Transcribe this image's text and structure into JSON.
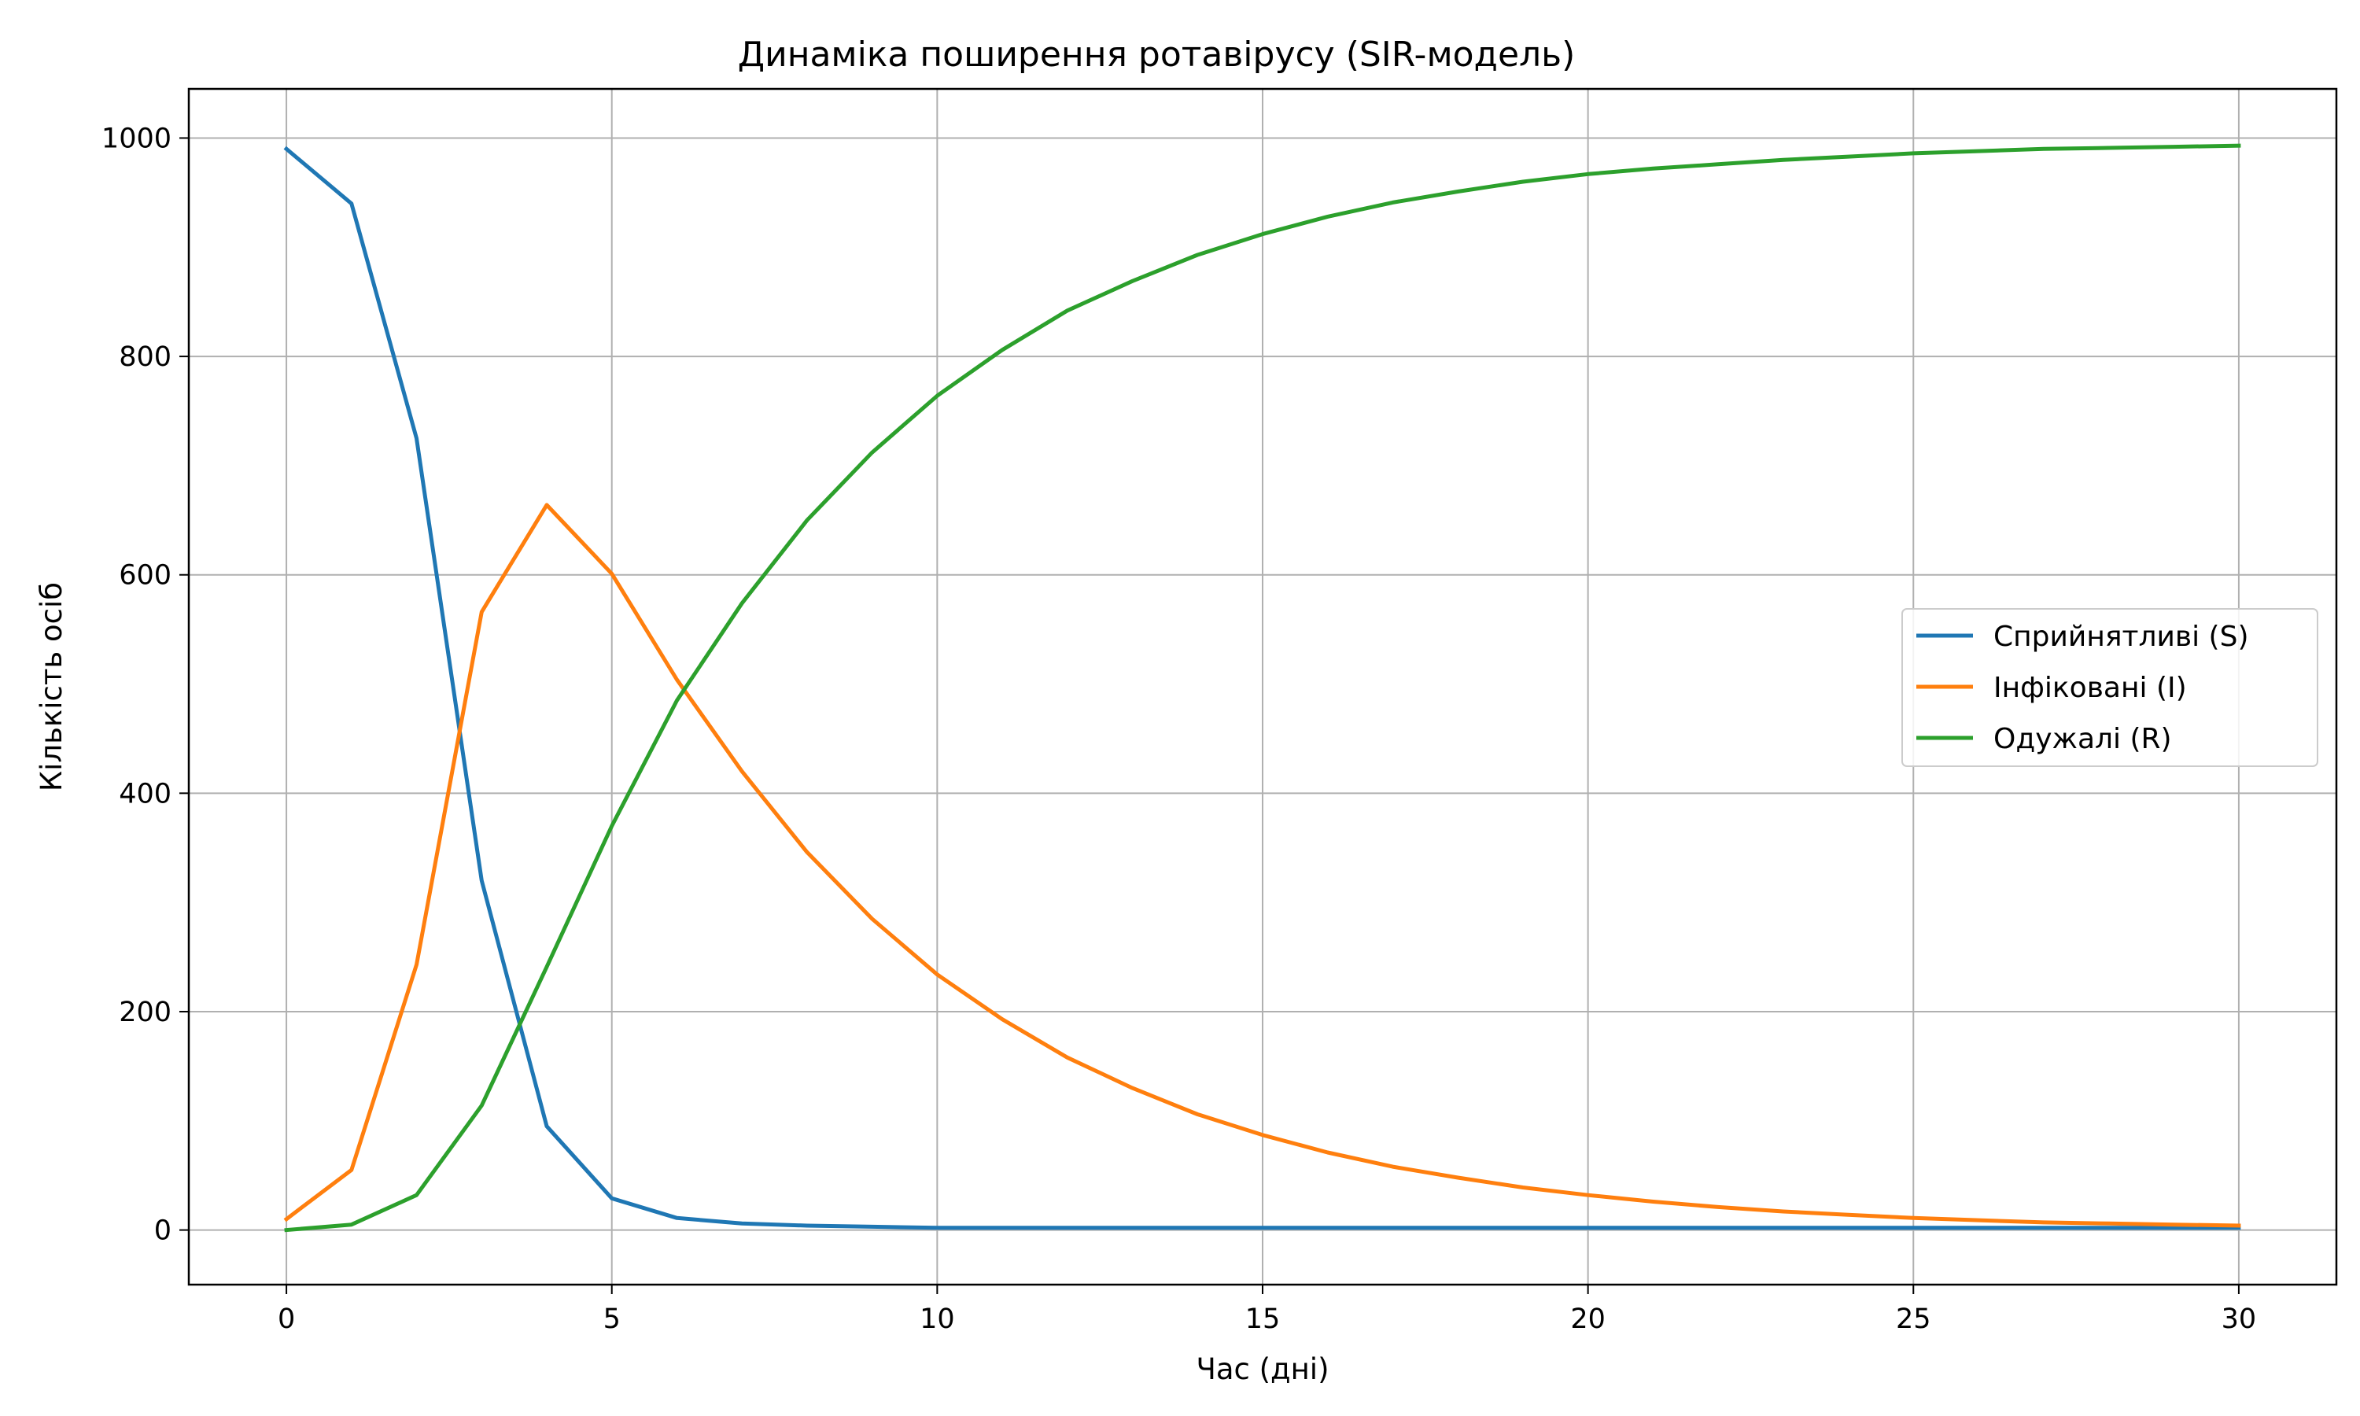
{
  "chart_data": {
    "type": "line",
    "title": "Динаміка поширення ротавірусу (SIR-модель)",
    "xlabel": "Час (дні)",
    "ylabel": "Кількість осіб",
    "xlim": [
      -1.5,
      31.5
    ],
    "ylim": [
      -50,
      1045
    ],
    "xticks": [
      0,
      5,
      10,
      15,
      20,
      25,
      30
    ],
    "yticks": [
      0,
      200,
      400,
      600,
      800,
      1000
    ],
    "grid": true,
    "legend_position": "center-right",
    "x": [
      0,
      1,
      2,
      3,
      4,
      5,
      6,
      7,
      8,
      9,
      10,
      11,
      12,
      13,
      14,
      15,
      16,
      17,
      18,
      19,
      20,
      21,
      22,
      23,
      24,
      25,
      26,
      27,
      28,
      29,
      30
    ],
    "series": [
      {
        "name": "Сприйнятливі (S)",
        "color": "#1f77b4",
        "values": [
          990,
          940,
          725,
          320,
          95,
          29,
          11,
          6,
          4,
          3,
          2,
          2,
          2,
          2,
          2,
          2,
          2,
          2,
          2,
          2,
          2,
          2,
          2,
          2,
          2,
          2,
          2,
          2,
          2,
          2,
          2
        ]
      },
      {
        "name": "Інфіковані (I)",
        "color": "#ff7f0e",
        "values": [
          10,
          55,
          243,
          566,
          664,
          601,
          504,
          420,
          346,
          285,
          234,
          193,
          158,
          130,
          106,
          87,
          71,
          58,
          48,
          39,
          32,
          26,
          21,
          17,
          14,
          11,
          9,
          7,
          6,
          5,
          4
        ]
      },
      {
        "name": "Одужалі (R)",
        "color": "#2ca02c",
        "values": [
          0,
          5,
          32,
          114,
          241,
          370,
          485,
          574,
          650,
          712,
          764,
          806,
          842,
          869,
          893,
          912,
          928,
          941,
          951,
          960,
          967,
          972,
          976,
          980,
          983,
          986,
          988,
          990,
          991,
          992,
          993
        ]
      }
    ]
  }
}
